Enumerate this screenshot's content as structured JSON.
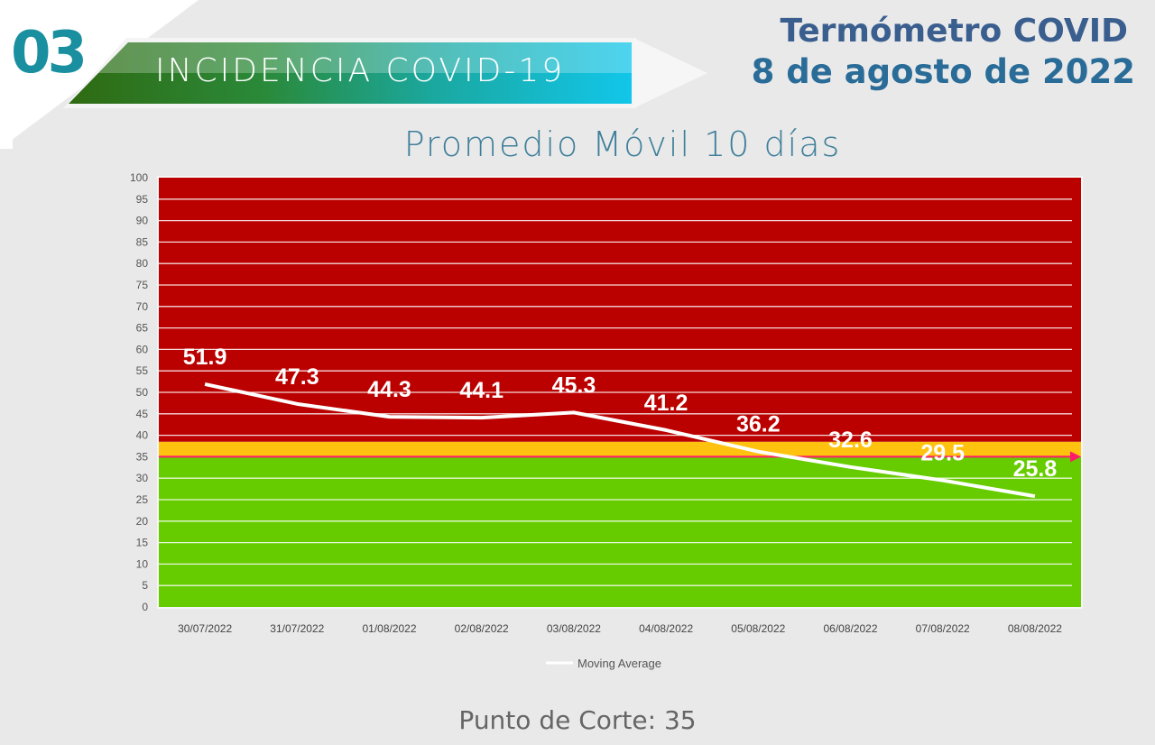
{
  "header": {
    "section_number": "03",
    "banner": "INCIDENCIA COVID-19",
    "title_line1": "Termómetro COVID",
    "title_line2": "8 de agosto de 2022"
  },
  "footer": "Punto de Corte: 35",
  "colors": {
    "red": "#bb0000",
    "yellow": "#ffc20e",
    "green": "#66cc00",
    "cutoff": "#ff1a6a",
    "line": "#ffffff"
  },
  "chart_data": {
    "type": "line",
    "title": "Promedio Móvil 10 días",
    "categories": [
      "30/07/2022",
      "31/07/2022",
      "01/08/2022",
      "02/08/2022",
      "03/08/2022",
      "04/08/2022",
      "05/08/2022",
      "06/08/2022",
      "07/08/2022",
      "08/08/2022"
    ],
    "series": [
      {
        "name": "Moving Average",
        "values": [
          51.9,
          47.3,
          44.3,
          44.1,
          45.3,
          41.2,
          36.2,
          32.6,
          29.5,
          25.8
        ]
      }
    ],
    "ylim": [
      0,
      100
    ],
    "ytick_step": 5,
    "bands": [
      {
        "from": 0,
        "to": 35,
        "color": "green"
      },
      {
        "from": 35,
        "to": 38.5,
        "color": "yellow"
      },
      {
        "from": 38.5,
        "to": 100,
        "color": "red"
      }
    ],
    "cutoff": 35,
    "legend": "bottom",
    "grid": true
  }
}
